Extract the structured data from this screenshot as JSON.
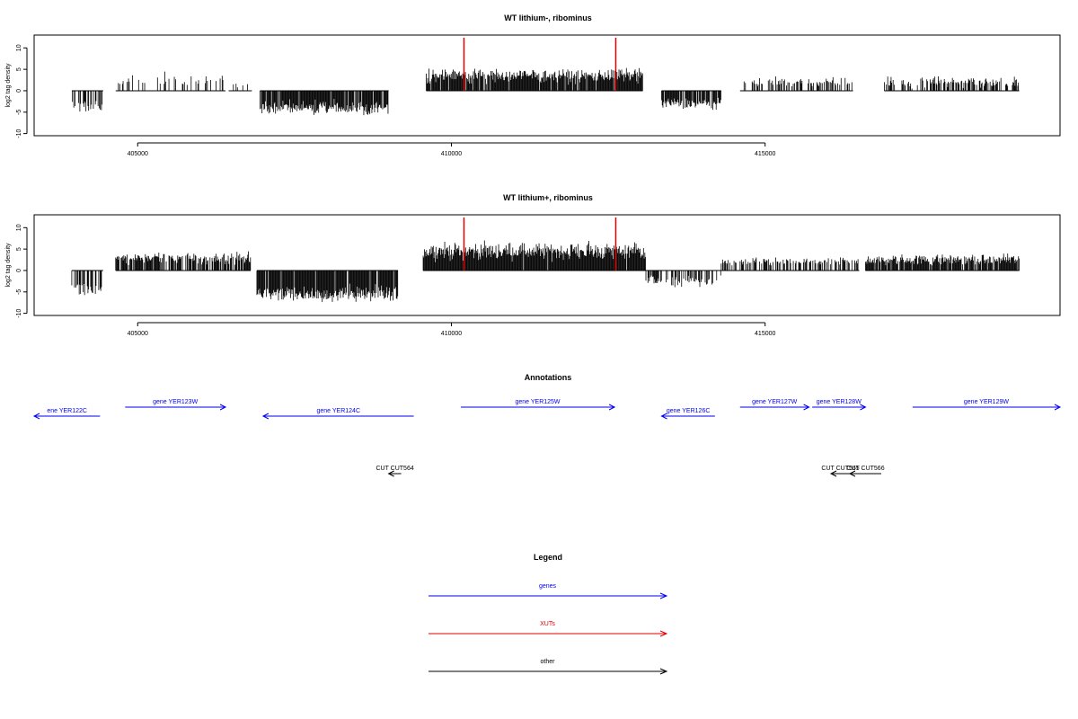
{
  "chart_data": [
    {
      "type": "bar",
      "title": "WT lithium-, ribominus",
      "ylabel": "log2 tag density",
      "xlim": [
        403350,
        419700
      ],
      "ylim": [
        -10.5,
        13
      ],
      "x_ticks": [
        405000,
        410000,
        415000
      ],
      "x_tick_labels": [
        "405000",
        "410000",
        "415000"
      ],
      "y_ticks": [
        -10,
        -5,
        0,
        5,
        10
      ],
      "y_tick_labels": [
        "-10",
        "-5",
        "0",
        "5",
        "10"
      ],
      "grid": false,
      "density_segments": [
        {
          "start": 403950,
          "end": 404450,
          "mean": -3.5,
          "spread": 1.5,
          "density": 0.4,
          "label": "-3.5"
        },
        {
          "start": 404650,
          "end": 406400,
          "mean": 2.5,
          "spread": 1.3,
          "density": 0.22,
          "label": "2.5"
        },
        {
          "start": 406450,
          "end": 406820,
          "mean": 1.5,
          "spread": 1.0,
          "density": 0.2,
          "label": "1.5"
        },
        {
          "start": 406950,
          "end": 409000,
          "mean": -4.0,
          "spread": 1.5,
          "density": 0.9,
          "label": "-4"
        },
        {
          "start": 409600,
          "end": 413050,
          "mean": 3.5,
          "spread": 1.5,
          "density": 0.95,
          "label": "3.5"
        },
        {
          "start": 413350,
          "end": 414300,
          "mean": -3.0,
          "spread": 1.2,
          "density": 0.8,
          "label": "-3"
        },
        {
          "start": 414600,
          "end": 416400,
          "mean": 2.0,
          "spread": 1.0,
          "density": 0.45,
          "label": "2"
        },
        {
          "start": 416900,
          "end": 419050,
          "mean": 2.0,
          "spread": 1.2,
          "density": 0.5,
          "label": "2"
        }
      ],
      "marker_lines": [
        {
          "x": 410200,
          "color": "#e00000"
        },
        {
          "x": 412620,
          "color": "#e00000"
        }
      ]
    },
    {
      "type": "bar",
      "title": "WT lithium+, ribominus",
      "ylabel": "log2 tag density",
      "xlim": [
        403350,
        419700
      ],
      "ylim": [
        -10.5,
        13
      ],
      "x_ticks": [
        405000,
        410000,
        415000
      ],
      "x_tick_labels": [
        "405000",
        "410000",
        "415000"
      ],
      "y_ticks": [
        -10,
        -5,
        0,
        5,
        10
      ],
      "y_tick_labels": [
        "-10",
        "-5",
        "0",
        "5",
        "10"
      ],
      "grid": false,
      "density_segments": [
        {
          "start": 403950,
          "end": 404450,
          "mean": -4.5,
          "spread": 1.8,
          "density": 0.5,
          "label": "-4.5"
        },
        {
          "start": 404650,
          "end": 406800,
          "mean": 2.8,
          "spread": 1.2,
          "density": 0.7,
          "label": "2.8"
        },
        {
          "start": 406900,
          "end": 409150,
          "mean": -5.5,
          "spread": 1.8,
          "density": 0.95,
          "label": "-5.5"
        },
        {
          "start": 409550,
          "end": 413100,
          "mean": 4.5,
          "spread": 1.8,
          "density": 0.98,
          "label": "4.5"
        },
        {
          "start": 413100,
          "end": 414300,
          "mean": -2.5,
          "spread": 1.2,
          "density": 0.6,
          "label": "-2.5"
        },
        {
          "start": 414300,
          "end": 416500,
          "mean": 2.0,
          "spread": 0.9,
          "density": 0.55,
          "label": "2"
        },
        {
          "start": 416600,
          "end": 419050,
          "mean": 2.5,
          "spread": 1.1,
          "density": 0.9,
          "label": "2.5"
        }
      ],
      "marker_lines": [
        {
          "x": 410200,
          "color": "#e00000"
        },
        {
          "x": 412620,
          "color": "#e00000"
        }
      ]
    },
    {
      "type": "diagram",
      "title": "Annotations",
      "xlim": [
        403350,
        419700
      ],
      "features": [
        {
          "label": "ene YER122C",
          "start": 403350,
          "end": 404400,
          "strand": "-",
          "row": 2,
          "color": "#0000ee"
        },
        {
          "label": "gene YER123W",
          "start": 404800,
          "end": 406400,
          "strand": "+",
          "row": 1,
          "color": "#0000ee"
        },
        {
          "label": "gene YER124C",
          "start": 407000,
          "end": 409400,
          "strand": "-",
          "row": 2,
          "color": "#0000ee"
        },
        {
          "label": "gene YER125W",
          "start": 410150,
          "end": 412600,
          "strand": "+",
          "row": 1,
          "color": "#0000ee"
        },
        {
          "label": "gene YER126C",
          "start": 413350,
          "end": 414200,
          "strand": "-",
          "row": 2,
          "color": "#0000ee"
        },
        {
          "label": "gene YER127W",
          "start": 414600,
          "end": 415700,
          "strand": "+",
          "row": 1,
          "color": "#0000ee"
        },
        {
          "label": "gene YER128W",
          "start": 415750,
          "end": 416600,
          "strand": "+",
          "row": 1,
          "color": "#0000ee"
        },
        {
          "label": "gene YER129W",
          "start": 417350,
          "end": 419700,
          "strand": "+",
          "row": 1,
          "color": "#0000ee"
        },
        {
          "label": "CUT CUT564",
          "start": 409000,
          "end": 409200,
          "strand": "-",
          "row": 3,
          "color": "#000000"
        },
        {
          "label": "CUT CUT565",
          "start": 416050,
          "end": 416350,
          "strand": "-",
          "row": 3,
          "color": "#000000"
        },
        {
          "label": "CUT CUT566",
          "start": 416350,
          "end": 416850,
          "strand": "-",
          "row": 3,
          "color": "#000000"
        }
      ]
    }
  ],
  "legend": {
    "title": "Legend",
    "items": [
      {
        "label": "genes",
        "color": "#0000ee"
      },
      {
        "label": "XUTs",
        "color": "#e00000"
      },
      {
        "label": "other",
        "color": "#000000"
      }
    ]
  }
}
